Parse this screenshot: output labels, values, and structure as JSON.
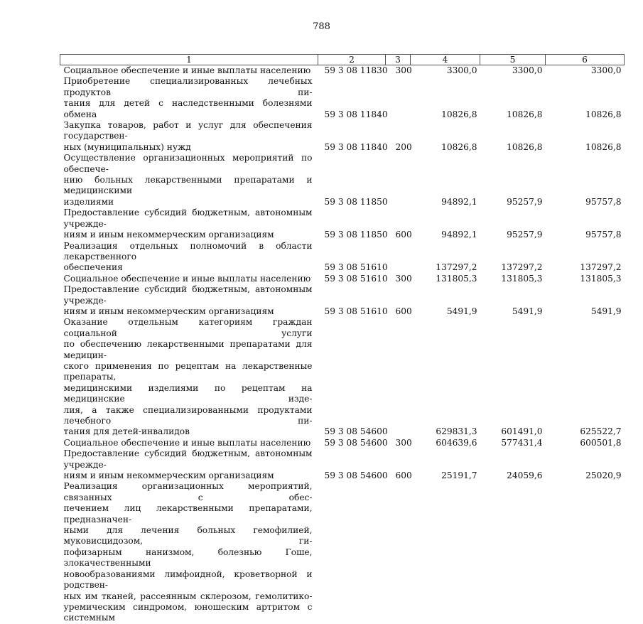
{
  "page_number": "788",
  "table": {
    "headers": [
      "1",
      "2",
      "3",
      "4",
      "5",
      "6"
    ],
    "rows": [
      {
        "lines": [
          "Социальное обеспечение и иные выплаты населению"
        ],
        "code": "59 3 08 11830",
        "type": "300",
        "v4": "3300,0",
        "v5": "3300,0",
        "v6": "3300,0"
      },
      {
        "lines": [
          "Приобретение специализированных лечебных продуктов пи-",
          "тания для детей с наследственными болезнями обмена"
        ],
        "code": "59 3 08 11840",
        "type": "",
        "v4": "10826,8",
        "v5": "10826,8",
        "v6": "10826,8"
      },
      {
        "lines": [
          "Закупка товаров, работ и услуг для обеспечения государствен-",
          "ных (муниципальных) нужд"
        ],
        "code": "59 3 08 11840",
        "type": "200",
        "v4": "10826,8",
        "v5": "10826,8",
        "v6": "10826,8"
      },
      {
        "lines": [
          "Осуществление организационных мероприятий по обеспече-",
          "нию больных лекарственными препаратами и медицинскими",
          "изделиями"
        ],
        "code": "59 3 08 11850",
        "type": "",
        "v4": "94892,1",
        "v5": "95257,9",
        "v6": "95757,8"
      },
      {
        "lines": [
          "Предоставление субсидий бюджетным, автономным учрежде-",
          "ниям и иным некоммерческим организациям"
        ],
        "code": "59 3 08 11850",
        "type": "600",
        "v4": "94892,1",
        "v5": "95257,9",
        "v6": "95757,8"
      },
      {
        "lines": [
          "Реализация отдельных полномочий в области лекарственного",
          "обеспечения"
        ],
        "code": "59 3 08 51610",
        "type": "",
        "v4": "137297,2",
        "v5": "137297,2",
        "v6": "137297,2"
      },
      {
        "lines": [
          "Социальное обеспечение и иные выплаты населению"
        ],
        "code": "59 3 08 51610",
        "type": "300",
        "v4": "131805,3",
        "v5": "131805,3",
        "v6": "131805,3"
      },
      {
        "lines": [
          "Предоставление субсидий бюджетным, автономным учрежде-",
          "ниям и иным некоммерческим организациям"
        ],
        "code": "59 3 08 51610",
        "type": "600",
        "v4": "5491,9",
        "v5": "5491,9",
        "v6": "5491,9"
      },
      {
        "lines": [
          "Оказание отдельным категориям граждан социальной услуги",
          "по обеспечению лекарственными препаратами для медицин-",
          "ского применения по рецептам на лекарственные препараты,",
          "медицинскими изделиями по рецептам на медицинские изде-",
          "лия, а также специализированными продуктами лечебного пи-",
          "тания для детей-инвалидов"
        ],
        "code": "59 3 08 54600",
        "type": "",
        "v4": "629831,3",
        "v5": "601491,0",
        "v6": "625522,7"
      },
      {
        "lines": [
          "Социальное обеспечение и иные выплаты населению"
        ],
        "code": "59 3 08 54600",
        "type": "300",
        "v4": "604639,6",
        "v5": "577431,4",
        "v6": "600501,8"
      },
      {
        "lines": [
          "Предоставление субсидий бюджетным, автономным учрежде-",
          "ниям и иным некоммерческим организациям"
        ],
        "code": "59 3 08 54600",
        "type": "600",
        "v4": "25191,7",
        "v5": "24059,6",
        "v6": "25020,9"
      },
      {
        "lines": [
          "Реализация организационных мероприятий, связанных с обес-",
          "печением лиц лекарственными препаратами, предназначен-",
          "ными для лечения больных гемофилией, муковисцидозом, ги-",
          "пофизарным нанизмом, болезнью Гоше, злокачественными",
          "новообразованиями лимфоидной, кроветворной и родствен-",
          "ных им тканей, рассеянным склерозом, гемолитико-",
          "уремическим синдромом, юношеским артритом с системным"
        ],
        "code": "",
        "type": "",
        "v4": "",
        "v5": "",
        "v6": "",
        "continues": true
      }
    ]
  }
}
